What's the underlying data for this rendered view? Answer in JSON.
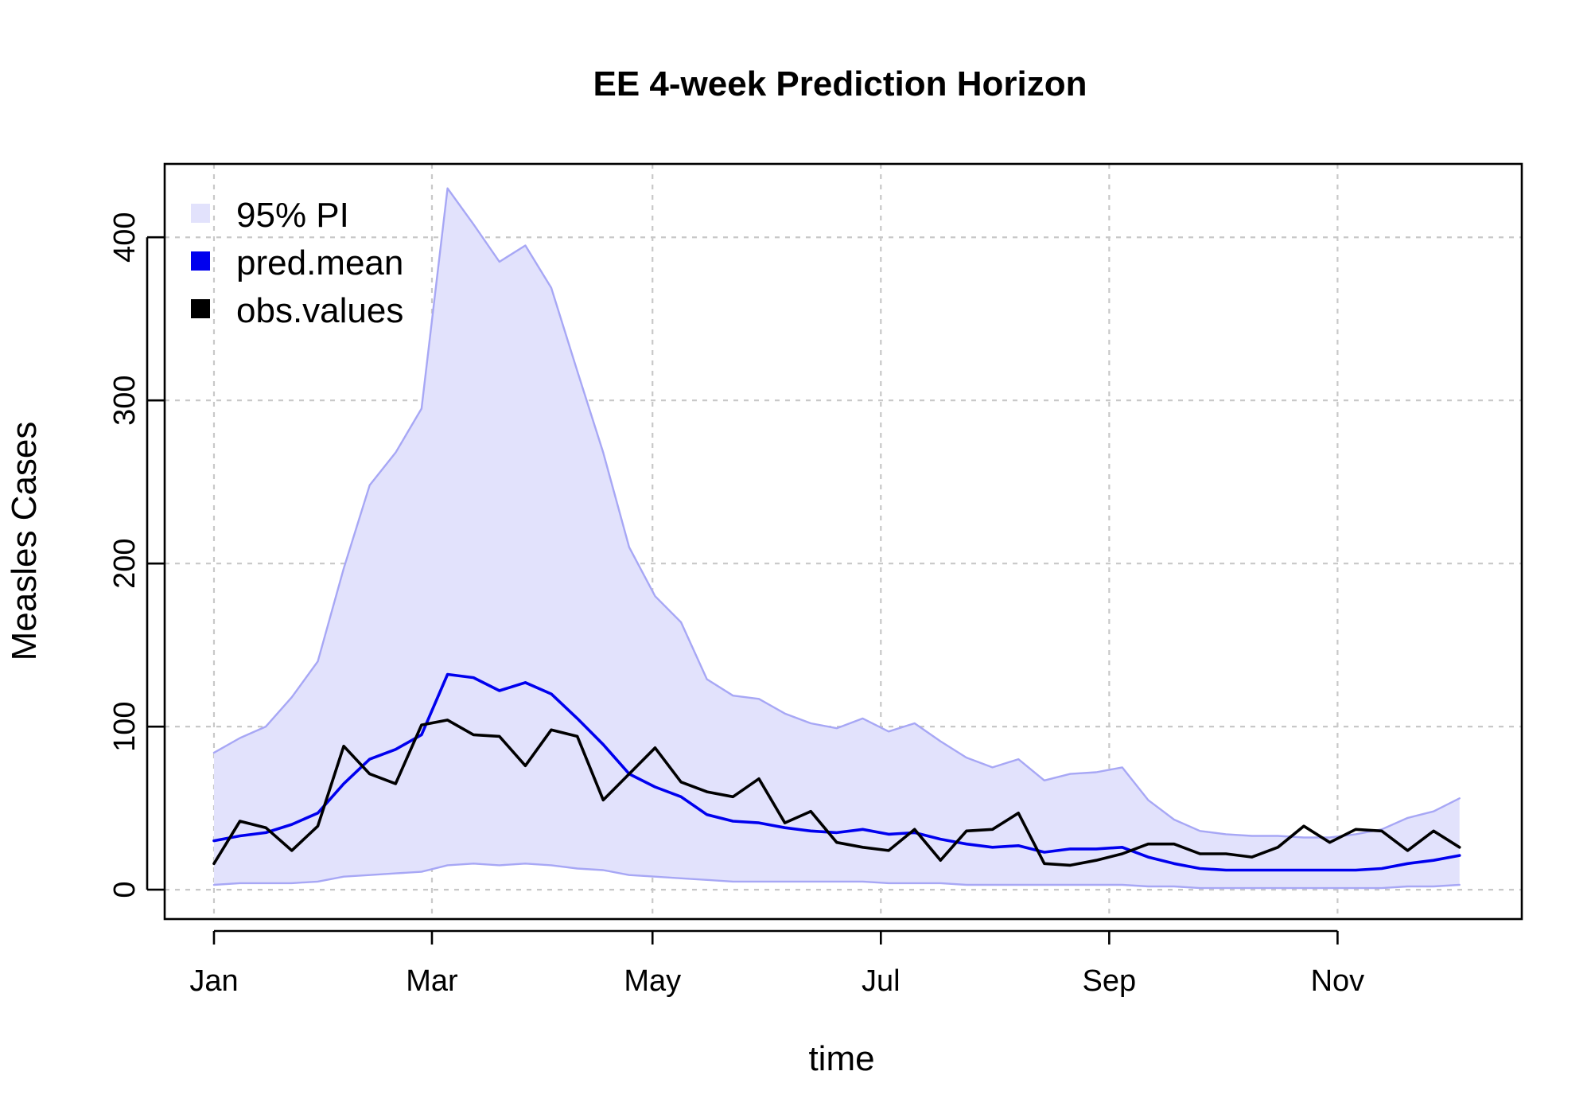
{
  "chart_data": {
    "type": "line",
    "title": "EE 4-week Prediction Horizon",
    "xlabel": "time",
    "ylabel": "Measles Cases",
    "x_tick_labels": [
      "Jan",
      "Mar",
      "May",
      "Jul",
      "Sep",
      "Nov"
    ],
    "y_tick_labels": [
      "0",
      "100",
      "200",
      "300",
      "400"
    ],
    "y_ticks": [
      0,
      100,
      200,
      300,
      400
    ],
    "ylim": [
      -18,
      445
    ],
    "x_range_weeks": [
      -1.9,
      50.4
    ],
    "x_tick_weeks": [
      0,
      8.4,
      16.9,
      25.7,
      34.5,
      43.3
    ],
    "grid": true,
    "legend_position": "top-left",
    "colors": {
      "pi_fill": "#e2e2fc",
      "pi_border": "#a7a7f5",
      "pred_mean": "#0000ee",
      "obs_values": "#000000"
    },
    "legend": [
      {
        "label": "95% PI",
        "color": "#e2e2fc"
      },
      {
        "label": "pred.mean",
        "color": "#0000ee"
      },
      {
        "label": "obs.values",
        "color": "#000000"
      }
    ],
    "series": [
      {
        "name": "95% PI upper",
        "values": [
          84,
          93,
          100,
          118,
          140,
          197,
          248,
          268,
          295,
          430,
          408,
          385,
          395,
          369,
          318,
          268,
          210,
          180,
          164,
          129,
          119,
          117,
          108,
          102,
          99,
          105,
          97,
          102,
          91,
          81,
          75,
          80,
          67,
          71,
          72,
          75,
          55,
          43,
          36,
          34,
          33,
          33,
          32,
          32,
          34,
          37,
          44,
          48,
          56
        ]
      },
      {
        "name": "95% PI lower",
        "values": [
          3,
          4,
          4,
          4,
          5,
          8,
          9,
          10,
          11,
          15,
          16,
          15,
          16,
          15,
          13,
          12,
          9,
          8,
          7,
          6,
          5,
          5,
          5,
          5,
          5,
          5,
          4,
          4,
          4,
          3,
          3,
          3,
          3,
          3,
          3,
          3,
          2,
          2,
          1,
          1,
          1,
          1,
          1,
          1,
          1,
          1,
          2,
          2,
          3
        ]
      },
      {
        "name": "pred.mean",
        "values": [
          30,
          33,
          35,
          40,
          47,
          65,
          80,
          86,
          95,
          132,
          130,
          122,
          127,
          120,
          105,
          89,
          71,
          63,
          57,
          46,
          42,
          41,
          38,
          36,
          35,
          37,
          34,
          35,
          31,
          28,
          26,
          27,
          23,
          25,
          25,
          26,
          20,
          16,
          13,
          12,
          12,
          12,
          12,
          12,
          12,
          13,
          16,
          18,
          21
        ]
      },
      {
        "name": "obs.values",
        "values": [
          16,
          42,
          38,
          24,
          39,
          88,
          71,
          65,
          101,
          104,
          95,
          94,
          76,
          98,
          94,
          55,
          71,
          87,
          66,
          60,
          57,
          68,
          41,
          48,
          29,
          26,
          24,
          37,
          18,
          36,
          37,
          47,
          16,
          15,
          18,
          22,
          28,
          28,
          22,
          22,
          20,
          26,
          39,
          29,
          37,
          36,
          24,
          36,
          26
        ]
      }
    ]
  }
}
